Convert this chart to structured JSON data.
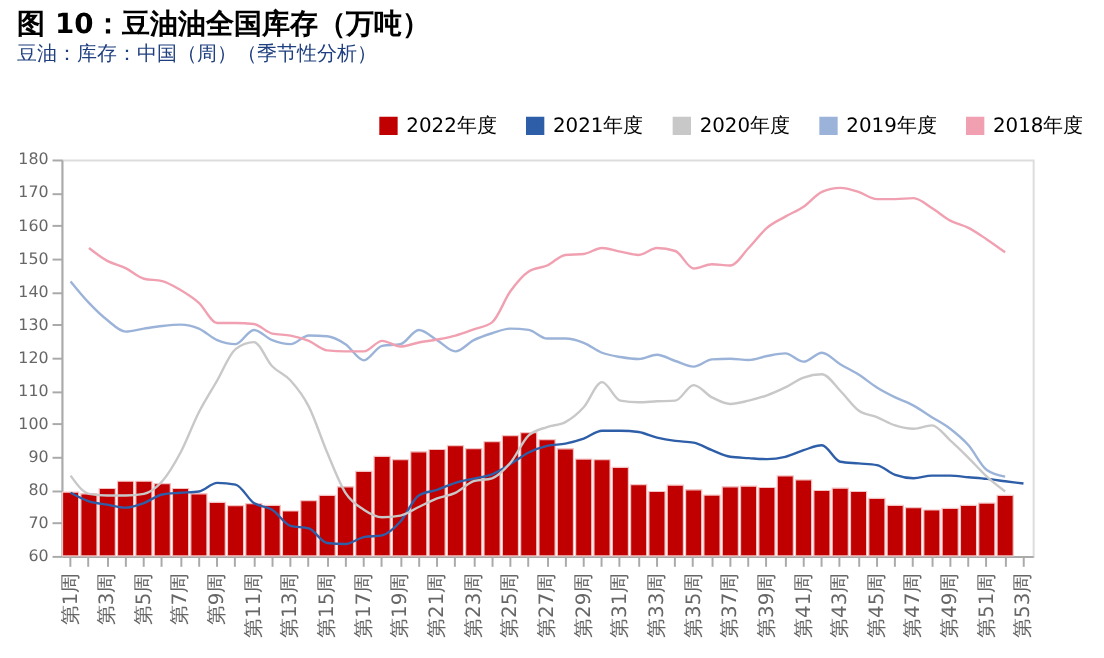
{
  "chart_data": {
    "type": "bar",
    "title": "图 10：豆油油全国库存（万吨）",
    "subtitle": "豆油：库存：中国（周）（季节性分析）",
    "categories": [
      "第1周",
      null,
      "第3周",
      null,
      "第5周",
      null,
      "第7周",
      null,
      "第9周",
      null,
      "第11周",
      null,
      "第13周",
      null,
      "第15周",
      null,
      "第17周",
      null,
      "第19周",
      null,
      "第21周",
      null,
      "第23周",
      null,
      "第25周",
      null,
      "第27周",
      null,
      "第29周",
      null,
      "第31周",
      null,
      "第33周",
      null,
      "第35周",
      null,
      "第37周",
      null,
      "第39周",
      null,
      "第41周",
      null,
      "第43周",
      null,
      "第45周",
      null,
      "第47周",
      null,
      "第49周",
      null,
      "第51周",
      null,
      "第53周"
    ],
    "series": [
      {
        "name": "2022年度",
        "color": "#c00000",
        "values": [
          79.3,
          78.8,
          80.4,
          82.6,
          82.6,
          81.9,
          80.4,
          78.8,
          76.2,
          75.2,
          75.8,
          75.3,
          73.6,
          76.7,
          78.3,
          80.9,
          85.6,
          90.1,
          89.1,
          91.5,
          92.2,
          93.4,
          92.5,
          94.6,
          96.4,
          97.3,
          95.2,
          92.4,
          89.3,
          89.1,
          86.8,
          81.6,
          79.5,
          81.4,
          80.0,
          78.4,
          80.9,
          81.1,
          80.7,
          84.2,
          83.0,
          79.8,
          80.5,
          79.5,
          77.4,
          75.3,
          74.6,
          73.9,
          74.4,
          75.3,
          76.0,
          78.3,
          null
        ]
      },
      {
        "name": "2021年度",
        "type": "line",
        "color": "#2e5ea8",
        "values": [
          79.1,
          76.5,
          75.5,
          74.6,
          76,
          78.6,
          79.1,
          79.5,
          82.1,
          81.6,
          76,
          74,
          69.1,
          68.3,
          63.9,
          63.6,
          65.7,
          66.2,
          70.4,
          78.3,
          80,
          82.1,
          83.4,
          84.7,
          87.8,
          91.3,
          93.3,
          94,
          95.5,
          97.9,
          97.9,
          97.5,
          95.8,
          94.8,
          94.3,
          92,
          90,
          89.6,
          89.3,
          90,
          92,
          93.5,
          88.5,
          88,
          87.5,
          84.5,
          83.5,
          84.3,
          84.3,
          83.8,
          83.3,
          82.6,
          81.9
        ]
      },
      {
        "name": "2020年度",
        "type": "line",
        "color": "#c8c8c8",
        "values": [
          84.3,
          78.8,
          78.3,
          78.3,
          78.8,
          82.6,
          91.3,
          103.5,
          113.1,
          122.6,
          124.7,
          117.4,
          113.1,
          105.2,
          91.3,
          79.1,
          74,
          71.7,
          72.2,
          74.8,
          77.4,
          79.1,
          82.6,
          83.5,
          88.2,
          96.5,
          99,
          100.5,
          105,
          112.6,
          107,
          106.5,
          106.8,
          107,
          111.7,
          108,
          106,
          107,
          108.6,
          111,
          114,
          115,
          110,
          104,
          102,
          99.5,
          98.5,
          99.5,
          95,
          89.7,
          84,
          79.5,
          null
        ]
      },
      {
        "name": "2019年度",
        "type": "line",
        "color": "#9bb3d8",
        "values": [
          143.1,
          136.6,
          131.4,
          127.9,
          128.8,
          129.6,
          130,
          128.8,
          125.3,
          124.1,
          128.4,
          125.3,
          124.1,
          126.7,
          126.5,
          124.1,
          119.2,
          123.6,
          124.1,
          128.4,
          125.3,
          121.9,
          125.3,
          127.4,
          128.8,
          128.4,
          125.8,
          125.8,
          124.5,
          121.5,
          120.2,
          119.6,
          120.9,
          119,
          117.3,
          119.5,
          119.7,
          119.3,
          120.5,
          121.3,
          118.8,
          121.5,
          118,
          114.9,
          111,
          108,
          105.5,
          102,
          98.5,
          93.5,
          86,
          84,
          null
        ]
      },
      {
        "name": "2018年度",
        "type": "line",
        "color": "#f0a0b0",
        "values": [
          null,
          153.2,
          149.3,
          147.1,
          143.9,
          143.2,
          140.5,
          136.6,
          130.5,
          130.5,
          130.2,
          127.3,
          126.7,
          125.1,
          122.2,
          121.9,
          121.9,
          125.1,
          123.4,
          124.6,
          125.5,
          126.7,
          128.6,
          130.7,
          140.1,
          146.1,
          147.9,
          151.1,
          151.4,
          153.2,
          152.1,
          151.1,
          153.2,
          152.3,
          147.0,
          148.3,
          147.9,
          153.2,
          159.3,
          162.7,
          165.7,
          170.2,
          171.4,
          170.2,
          168,
          168,
          168.3,
          165.3,
          161.5,
          159.3,
          155.8,
          151.9,
          null
        ]
      }
    ],
    "ylim": [
      60,
      180
    ],
    "yticks": [
      60,
      70,
      80,
      90,
      100,
      110,
      120,
      130,
      140,
      150,
      160,
      170,
      180
    ],
    "grid": false,
    "legend": "top right"
  }
}
